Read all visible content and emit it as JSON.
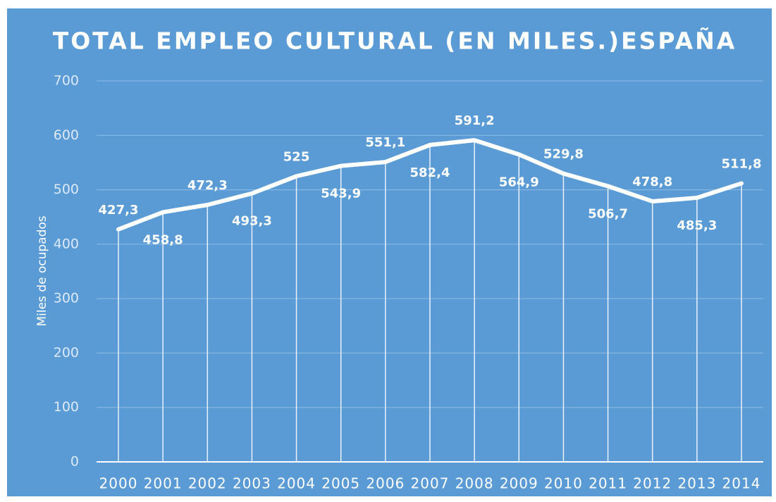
{
  "chart_data": {
    "type": "line",
    "title": "TOTAL EMPLEO CULTURAL (EN MILES.)ESPAÑA",
    "y_label": "Miles de ocupados",
    "categories": [
      "2000",
      "2001",
      "2002",
      "2003",
      "2004",
      "2005",
      "2006",
      "2007",
      "2008",
      "2009",
      "2010",
      "2011",
      "2012",
      "2013",
      "2014"
    ],
    "values": [
      427.3,
      458.8,
      472.3,
      493.3,
      525,
      543.9,
      551.1,
      582.4,
      591.2,
      564.9,
      529.8,
      506.7,
      478.8,
      485.3,
      511.8
    ],
    "value_labels": [
      "427,3",
      "458,8",
      "472,3",
      "493,3",
      "525",
      "543,9",
      "551,1",
      "582,4",
      "591,2",
      "564,9",
      "529,8",
      "506,7",
      "478,8",
      "485,3",
      "511,8"
    ],
    "color": "#ffffff",
    "background": "#5b9bd5",
    "ylim": [
      0,
      700
    ],
    "yticks": [
      0,
      100,
      200,
      300,
      400,
      500,
      600,
      700
    ],
    "grid": true,
    "drop_lines": true
  }
}
